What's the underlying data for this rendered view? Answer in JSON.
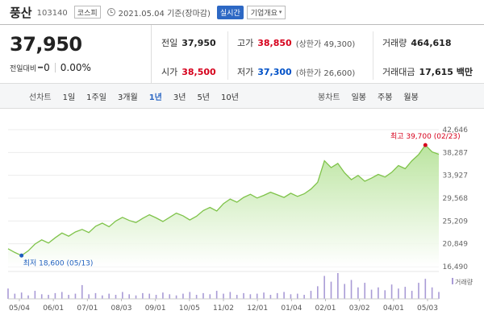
{
  "header": {
    "name": "풍산",
    "code": "103140",
    "market": "코스피",
    "date": "2021.05.04 기준(장마감)",
    "realtime": "실시간",
    "company": "기업개요"
  },
  "price": {
    "current": "37,950",
    "change_label": "전일대비",
    "change_value": "0",
    "change_rate": "0.00%"
  },
  "stats": {
    "prev_label": "전일",
    "prev_value": "37,950",
    "open_label": "시가",
    "open_value": "38,500",
    "high_label": "고가",
    "high_value": "38,850",
    "upper_limit": "(상한가 49,300)",
    "low_label": "저가",
    "low_value": "37,300",
    "lower_limit": "(하한가 26,600)",
    "volume_label": "거래량",
    "volume_value": "464,618",
    "amount_label": "거래대금",
    "amount_value": "17,615 백만"
  },
  "tabs": {
    "line_label": "선차트",
    "line_tabs": [
      "1일",
      "1주일",
      "3개월",
      "1년",
      "3년",
      "5년",
      "10년"
    ],
    "active_line_tab": "1년",
    "candle_label": "봉차트",
    "candle_tabs": [
      "일봉",
      "주봉",
      "월봉"
    ]
  },
  "colors": {
    "line": "#7fc34a",
    "fill_top": "#b7e39a",
    "high_marker": "#d6001c",
    "low_marker": "#1f5fbf",
    "volume": "#a99bd6"
  },
  "chart_data": {
    "type": "area",
    "y_ticks": [
      "42,646",
      "38,287",
      "33,927",
      "29,568",
      "25,209",
      "20,849",
      "16,490"
    ],
    "ylim": [
      16490,
      42646
    ],
    "x_ticks": [
      "05/04",
      "06/01",
      "07/01",
      "08/03",
      "09/01",
      "10/05",
      "11/02",
      "12/01",
      "01/04",
      "02/01",
      "03/02",
      "04/01",
      "05/03"
    ],
    "series": [
      {
        "values": [
          19900,
          19200,
          18600,
          19500,
          20800,
          21600,
          21000,
          22000,
          22900,
          22300,
          23100,
          23600,
          23000,
          24200,
          24800,
          24100,
          25200,
          25900,
          25300,
          24900,
          25700,
          26400,
          25800,
          25100,
          25900,
          26700,
          26200,
          25400,
          26100,
          27200,
          27800,
          27100,
          28500,
          29400,
          28800,
          29700,
          30300,
          29600,
          30100,
          30700,
          30200,
          29700,
          30500,
          29900,
          30400,
          31300,
          32600,
          36700,
          35400,
          36200,
          34400,
          33100,
          33900,
          32800,
          33400,
          34100,
          33600,
          34500,
          35800,
          35200,
          36700,
          37900,
          39700,
          38400,
          37950
        ]
      }
    ],
    "annotations": {
      "high": "최고 39,700 (02/23)",
      "low": "최저 18,600 (05/13)"
    },
    "volume": [
      18,
      9,
      11,
      6,
      14,
      8,
      7,
      10,
      12,
      7,
      9,
      24,
      8,
      10,
      6,
      9,
      7,
      12,
      8,
      6,
      10,
      9,
      7,
      11,
      8,
      6,
      9,
      12,
      7,
      10,
      8,
      14,
      9,
      12,
      7,
      10,
      8,
      9,
      11,
      7,
      10,
      12,
      8,
      9,
      7,
      14,
      22,
      40,
      30,
      45,
      26,
      33,
      20,
      28,
      16,
      20,
      15,
      25,
      18,
      21,
      14,
      28,
      35,
      20,
      12
    ],
    "volume_label": "거래량"
  }
}
